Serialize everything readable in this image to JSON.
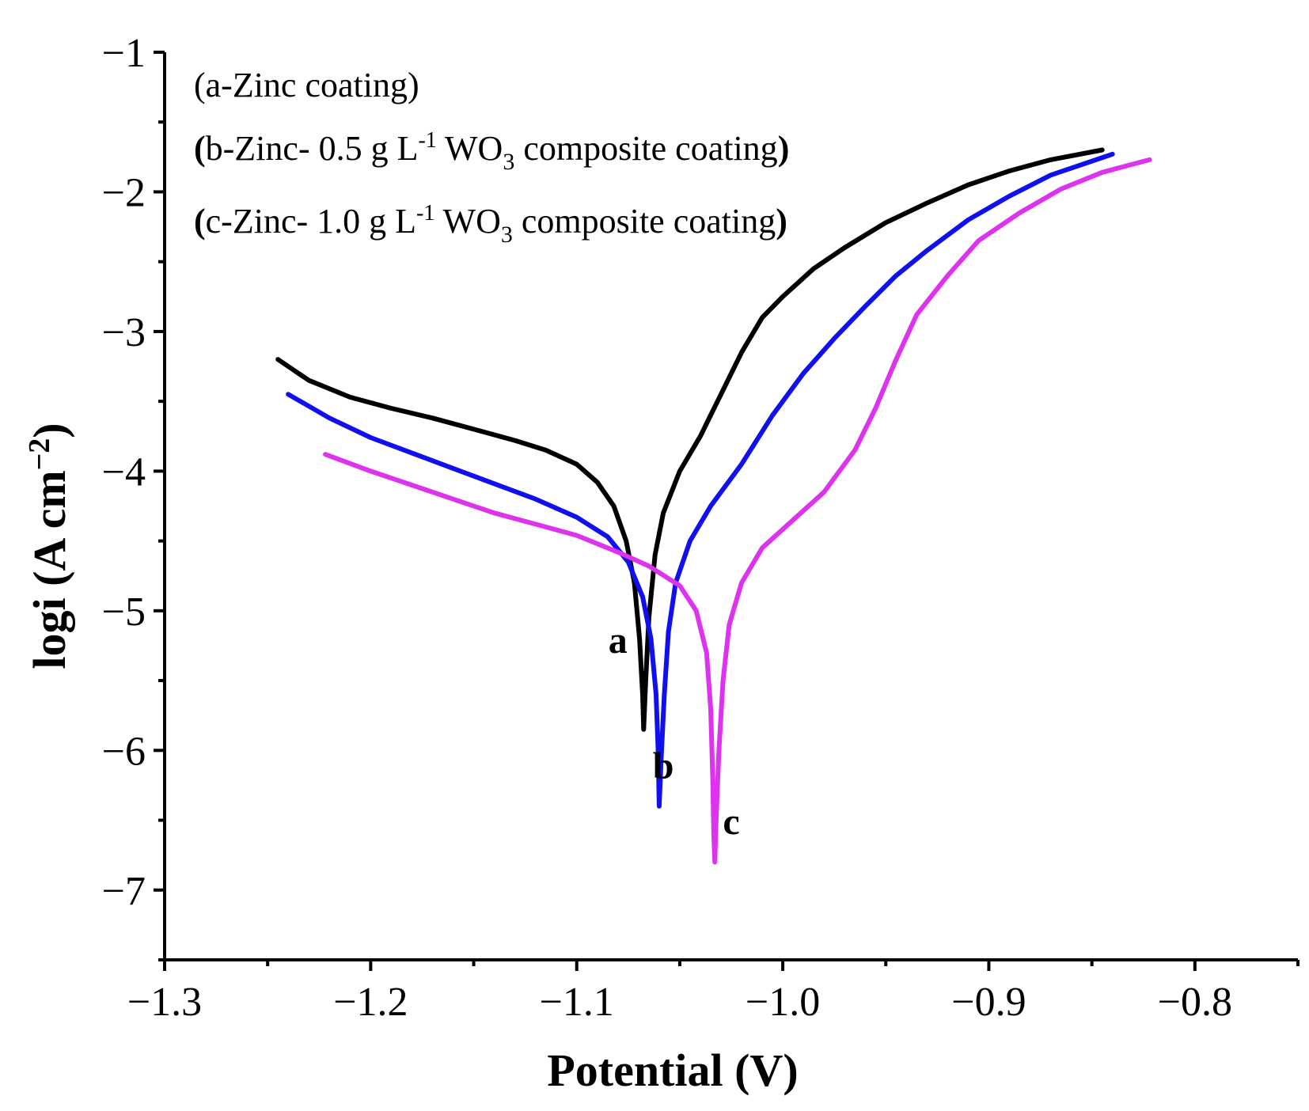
{
  "chart_data": {
    "type": "line",
    "xlabel": "Potential (V)",
    "ylabel_main": "logi (A cm",
    "ylabel_sup": "−2",
    "ylabel_close": ")",
    "xlim": [
      -1.3,
      -0.75
    ],
    "ylim": [
      -7.5,
      -1.0
    ],
    "x_ticks": [
      -1.3,
      -1.2,
      -1.1,
      -1.0,
      -0.9,
      -0.8
    ],
    "x_tick_labels": [
      "−1.3",
      "−1.2",
      "−1.1",
      "−1.0",
      "−0.9",
      "−0.8"
    ],
    "y_ticks": [
      -1,
      -2,
      -3,
      -4,
      -5,
      -6,
      -7
    ],
    "y_tick_labels": [
      "−1",
      "−2",
      "−3",
      "−4",
      "−5",
      "−6",
      "−7"
    ],
    "legend": {
      "line_a": "(a-Zinc coating)",
      "line_b": {
        "open": "(",
        "text": "b-Zinc- 0.5 g L",
        "sup": "-1",
        "mid": " WO",
        "sub": "3",
        "tail": " composite coating",
        "close": ")"
      },
      "line_c": {
        "open": "(",
        "text": "c-Zinc- 1.0 g L",
        "sup": "-1",
        "mid": " WO",
        "sub": "3",
        "tail": " composite coating",
        "close": ")"
      }
    },
    "series": [
      {
        "name": "a",
        "label": "a",
        "color": "#000000",
        "label_pos": [
          -1.08,
          -5.3
        ],
        "points": [
          [
            -1.245,
            -3.2
          ],
          [
            -1.23,
            -3.35
          ],
          [
            -1.21,
            -3.47
          ],
          [
            -1.19,
            -3.55
          ],
          [
            -1.17,
            -3.62
          ],
          [
            -1.15,
            -3.7
          ],
          [
            -1.13,
            -3.78
          ],
          [
            -1.115,
            -3.85
          ],
          [
            -1.1,
            -3.95
          ],
          [
            -1.09,
            -4.08
          ],
          [
            -1.082,
            -4.25
          ],
          [
            -1.076,
            -4.5
          ],
          [
            -1.072,
            -4.8
          ],
          [
            -1.0695,
            -5.2
          ],
          [
            -1.068,
            -5.6
          ],
          [
            -1.0675,
            -5.85
          ],
          [
            -1.0665,
            -5.5
          ],
          [
            -1.065,
            -5.05
          ],
          [
            -1.062,
            -4.6
          ],
          [
            -1.058,
            -4.3
          ],
          [
            -1.05,
            -4.0
          ],
          [
            -1.04,
            -3.75
          ],
          [
            -1.03,
            -3.45
          ],
          [
            -1.02,
            -3.15
          ],
          [
            -1.01,
            -2.9
          ],
          [
            -1.0,
            -2.75
          ],
          [
            -0.985,
            -2.55
          ],
          [
            -0.97,
            -2.4
          ],
          [
            -0.95,
            -2.22
          ],
          [
            -0.93,
            -2.08
          ],
          [
            -0.91,
            -1.95
          ],
          [
            -0.89,
            -1.85
          ],
          [
            -0.87,
            -1.77
          ],
          [
            -0.845,
            -1.7
          ]
        ]
      },
      {
        "name": "b",
        "label": "b",
        "color": "#1010ee",
        "label_pos": [
          -1.058,
          -6.2
        ],
        "points": [
          [
            -1.24,
            -3.45
          ],
          [
            -1.22,
            -3.62
          ],
          [
            -1.2,
            -3.76
          ],
          [
            -1.18,
            -3.87
          ],
          [
            -1.16,
            -3.98
          ],
          [
            -1.14,
            -4.09
          ],
          [
            -1.12,
            -4.2
          ],
          [
            -1.1,
            -4.33
          ],
          [
            -1.085,
            -4.47
          ],
          [
            -1.075,
            -4.65
          ],
          [
            -1.068,
            -4.9
          ],
          [
            -1.064,
            -5.2
          ],
          [
            -1.0615,
            -5.6
          ],
          [
            -1.0605,
            -6.0
          ],
          [
            -1.06,
            -6.4
          ],
          [
            -1.059,
            -6.05
          ],
          [
            -1.0575,
            -5.6
          ],
          [
            -1.0555,
            -5.15
          ],
          [
            -1.052,
            -4.8
          ],
          [
            -1.045,
            -4.5
          ],
          [
            -1.035,
            -4.25
          ],
          [
            -1.02,
            -3.95
          ],
          [
            -1.005,
            -3.6
          ],
          [
            -0.99,
            -3.3
          ],
          [
            -0.975,
            -3.05
          ],
          [
            -0.96,
            -2.82
          ],
          [
            -0.945,
            -2.6
          ],
          [
            -0.93,
            -2.42
          ],
          [
            -0.91,
            -2.2
          ],
          [
            -0.89,
            -2.03
          ],
          [
            -0.87,
            -1.88
          ],
          [
            -0.84,
            -1.73
          ]
        ]
      },
      {
        "name": "c",
        "label": "c",
        "color": "#dd33ee",
        "label_pos": [
          -1.025,
          -6.6
        ],
        "points": [
          [
            -1.222,
            -3.88
          ],
          [
            -1.2,
            -4.0
          ],
          [
            -1.18,
            -4.1
          ],
          [
            -1.16,
            -4.2
          ],
          [
            -1.14,
            -4.3
          ],
          [
            -1.12,
            -4.38
          ],
          [
            -1.1,
            -4.46
          ],
          [
            -1.08,
            -4.58
          ],
          [
            -1.065,
            -4.68
          ],
          [
            -1.05,
            -4.82
          ],
          [
            -1.042,
            -5.0
          ],
          [
            -1.037,
            -5.3
          ],
          [
            -1.035,
            -5.7
          ],
          [
            -1.034,
            -6.2
          ],
          [
            -1.0335,
            -6.6
          ],
          [
            -1.033,
            -6.8
          ],
          [
            -1.0325,
            -6.55
          ],
          [
            -1.031,
            -6.0
          ],
          [
            -1.029,
            -5.5
          ],
          [
            -1.026,
            -5.1
          ],
          [
            -1.02,
            -4.8
          ],
          [
            -1.01,
            -4.55
          ],
          [
            -0.995,
            -4.35
          ],
          [
            -0.98,
            -4.15
          ],
          [
            -0.965,
            -3.85
          ],
          [
            -0.955,
            -3.55
          ],
          [
            -0.945,
            -3.2
          ],
          [
            -0.935,
            -2.88
          ],
          [
            -0.92,
            -2.6
          ],
          [
            -0.905,
            -2.35
          ],
          [
            -0.885,
            -2.15
          ],
          [
            -0.865,
            -1.98
          ],
          [
            -0.845,
            -1.86
          ],
          [
            -0.822,
            -1.77
          ]
        ]
      }
    ]
  }
}
